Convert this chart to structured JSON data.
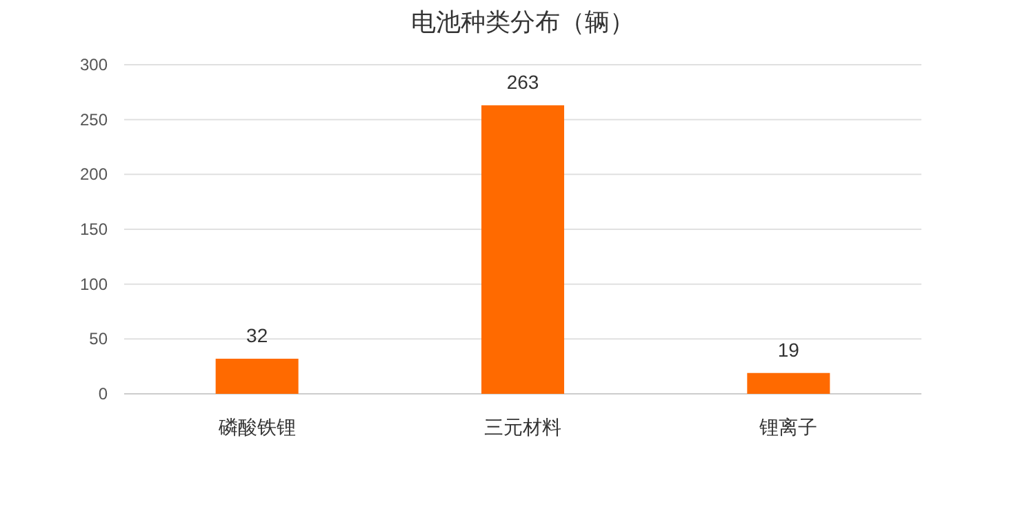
{
  "chart_data": {
    "type": "bar",
    "title": "电池种类分布（辆）",
    "categories": [
      "磷酸铁锂",
      "三元材料",
      "锂离子"
    ],
    "series": [
      {
        "color": "#ff6a00",
        "values": [
          32,
          263,
          19
        ]
      }
    ],
    "ylim": [
      0,
      300
    ],
    "yticks": [
      0,
      50,
      100,
      150,
      200,
      250,
      300
    ],
    "grid": "y",
    "data_labels": true
  }
}
